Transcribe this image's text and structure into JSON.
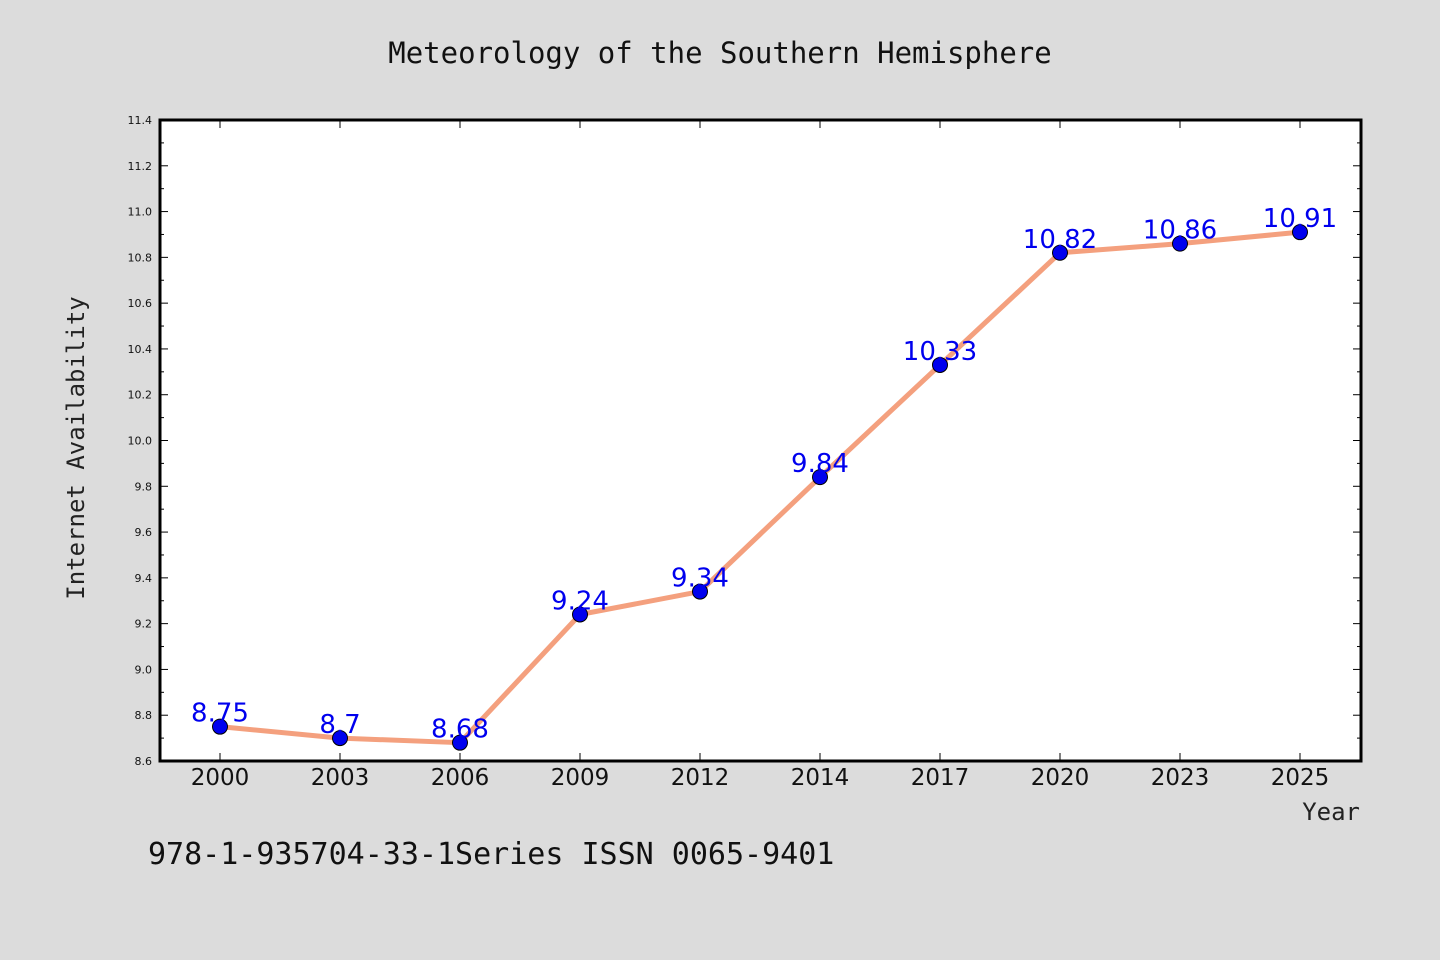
{
  "chart_data": {
    "type": "line",
    "title": "Meteorology of the Southern Hemisphere",
    "xlabel": "Year",
    "ylabel": "Internet Availability",
    "categories": [
      "2000",
      "2003",
      "2006",
      "2009",
      "2012",
      "2014",
      "2017",
      "2020",
      "2023",
      "2025"
    ],
    "series": [
      {
        "values": [
          8.75,
          8.7,
          8.68,
          9.24,
          9.34,
          9.84,
          10.33,
          10.82,
          10.86,
          10.91
        ],
        "labels": [
          "8.75",
          "8.7",
          "8.68",
          "9.24",
          "9.34",
          "9.84",
          "10.33",
          "10.82",
          "10.86",
          "10.91"
        ],
        "line_color": "#f4a07e",
        "marker_color": "#0000ee"
      }
    ],
    "ylim": [
      8.6,
      11.4
    ],
    "yticks": [
      "8.6",
      "8.8",
      "9.0",
      "9.2",
      "9.4",
      "9.6",
      "9.8",
      "10.0",
      "10.2",
      "10.4",
      "10.6",
      "10.8",
      "11.0",
      "11.2",
      "11.4"
    ],
    "grid": false,
    "legend": "none"
  },
  "footer": {
    "text": "978-1-935704-33-1Series ISSN 0065-9401"
  },
  "colors": {
    "background": "#dcdcdc",
    "plot_area": "#ffffff",
    "frame": "#000000"
  }
}
